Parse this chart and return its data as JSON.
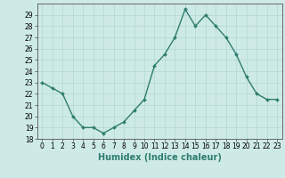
{
  "x": [
    0,
    1,
    2,
    3,
    4,
    5,
    6,
    7,
    8,
    9,
    10,
    11,
    12,
    13,
    14,
    15,
    16,
    17,
    18,
    19,
    20,
    21,
    22,
    23
  ],
  "y": [
    23.0,
    22.5,
    22.0,
    20.0,
    19.0,
    19.0,
    18.5,
    19.0,
    19.5,
    20.5,
    21.5,
    24.5,
    25.5,
    27.0,
    29.5,
    28.0,
    29.0,
    28.0,
    27.0,
    25.5,
    23.5,
    22.0,
    21.5,
    21.5
  ],
  "line_color": "#2e7d6e",
  "marker": "D",
  "marker_size": 2.0,
  "bg_color": "#ceeae6",
  "grid_color": "#b0d8d4",
  "xlabel": "Humidex (Indice chaleur)",
  "xlim": [
    -0.5,
    23.5
  ],
  "ylim": [
    18,
    30
  ],
  "yticks": [
    18,
    19,
    20,
    21,
    22,
    23,
    24,
    25,
    26,
    27,
    28,
    29
  ],
  "xticks": [
    0,
    1,
    2,
    3,
    4,
    5,
    6,
    7,
    8,
    9,
    10,
    11,
    12,
    13,
    14,
    15,
    16,
    17,
    18,
    19,
    20,
    21,
    22,
    23
  ],
  "tick_label_fontsize": 5.5,
  "xlabel_fontsize": 7.0,
  "line_width": 1.0
}
